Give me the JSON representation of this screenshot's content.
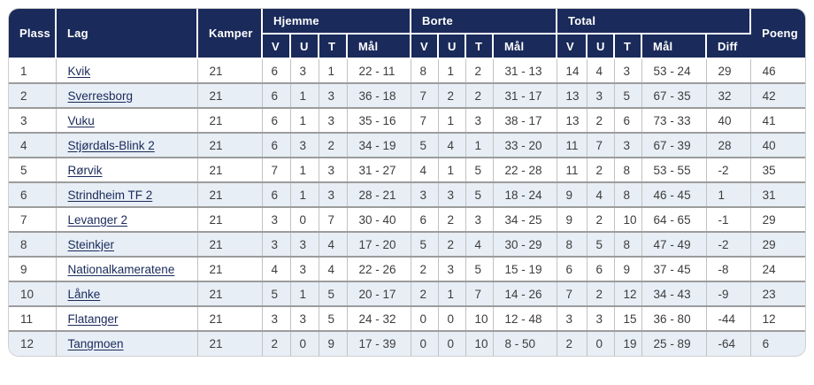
{
  "colors": {
    "header_bg": "#1a2a5a",
    "link": "#1a2a5a",
    "row_alt": "#e7eef6",
    "row_separator": "#9c9c9c"
  },
  "table": {
    "headers": {
      "plass": "Plass",
      "lag": "Lag",
      "kamper": "Kamper",
      "hjemme": "Hjemme",
      "borte": "Borte",
      "total": "Total",
      "v": "V",
      "u": "U",
      "t": "T",
      "maal": "Mål",
      "diff": "Diff",
      "poeng": "Poeng"
    },
    "rows": [
      {
        "plass": "1",
        "lag": "Kvik",
        "kamper": "21",
        "hv": "6",
        "hu": "3",
        "ht": "1",
        "hm": "22 - 11",
        "bv": "8",
        "bu": "1",
        "bt": "2",
        "bm": "31 - 13",
        "tv": "14",
        "tu": "4",
        "tt": "3",
        "tm": "53 - 24",
        "diff": "29",
        "poeng": "46"
      },
      {
        "plass": "2",
        "lag": "Sverresborg",
        "kamper": "21",
        "hv": "6",
        "hu": "1",
        "ht": "3",
        "hm": "36 - 18",
        "bv": "7",
        "bu": "2",
        "bt": "2",
        "bm": "31 - 17",
        "tv": "13",
        "tu": "3",
        "tt": "5",
        "tm": "67 - 35",
        "diff": "32",
        "poeng": "42"
      },
      {
        "plass": "3",
        "lag": "Vuku",
        "kamper": "21",
        "hv": "6",
        "hu": "1",
        "ht": "3",
        "hm": "35 - 16",
        "bv": "7",
        "bu": "1",
        "bt": "3",
        "bm": "38 - 17",
        "tv": "13",
        "tu": "2",
        "tt": "6",
        "tm": "73 - 33",
        "diff": "40",
        "poeng": "41"
      },
      {
        "plass": "4",
        "lag": "Stjørdals-Blink 2",
        "kamper": "21",
        "hv": "6",
        "hu": "3",
        "ht": "2",
        "hm": "34 - 19",
        "bv": "5",
        "bu": "4",
        "bt": "1",
        "bm": "33 - 20",
        "tv": "11",
        "tu": "7",
        "tt": "3",
        "tm": "67 - 39",
        "diff": "28",
        "poeng": "40"
      },
      {
        "plass": "5",
        "lag": "Rørvik",
        "kamper": "21",
        "hv": "7",
        "hu": "1",
        "ht": "3",
        "hm": "31 - 27",
        "bv": "4",
        "bu": "1",
        "bt": "5",
        "bm": "22 - 28",
        "tv": "11",
        "tu": "2",
        "tt": "8",
        "tm": "53 - 55",
        "diff": "-2",
        "poeng": "35"
      },
      {
        "plass": "6",
        "lag": "Strindheim TF 2",
        "kamper": "21",
        "hv": "6",
        "hu": "1",
        "ht": "3",
        "hm": "28 - 21",
        "bv": "3",
        "bu": "3",
        "bt": "5",
        "bm": "18 - 24",
        "tv": "9",
        "tu": "4",
        "tt": "8",
        "tm": "46 - 45",
        "diff": "1",
        "poeng": "31"
      },
      {
        "plass": "7",
        "lag": "Levanger 2",
        "kamper": "21",
        "hv": "3",
        "hu": "0",
        "ht": "7",
        "hm": "30 - 40",
        "bv": "6",
        "bu": "2",
        "bt": "3",
        "bm": "34 - 25",
        "tv": "9",
        "tu": "2",
        "tt": "10",
        "tm": "64 - 65",
        "diff": "-1",
        "poeng": "29"
      },
      {
        "plass": "8",
        "lag": "Steinkjer",
        "kamper": "21",
        "hv": "3",
        "hu": "3",
        "ht": "4",
        "hm": "17 - 20",
        "bv": "5",
        "bu": "2",
        "bt": "4",
        "bm": "30 - 29",
        "tv": "8",
        "tu": "5",
        "tt": "8",
        "tm": "47 - 49",
        "diff": "-2",
        "poeng": "29"
      },
      {
        "plass": "9",
        "lag": "Nationalkameratene",
        "kamper": "21",
        "hv": "4",
        "hu": "3",
        "ht": "4",
        "hm": "22 - 26",
        "bv": "2",
        "bu": "3",
        "bt": "5",
        "bm": "15 - 19",
        "tv": "6",
        "tu": "6",
        "tt": "9",
        "tm": "37 - 45",
        "diff": "-8",
        "poeng": "24"
      },
      {
        "plass": "10",
        "lag": "Lånke",
        "kamper": "21",
        "hv": "5",
        "hu": "1",
        "ht": "5",
        "hm": "20 - 17",
        "bv": "2",
        "bu": "1",
        "bt": "7",
        "bm": "14 - 26",
        "tv": "7",
        "tu": "2",
        "tt": "12",
        "tm": "34 - 43",
        "diff": "-9",
        "poeng": "23"
      },
      {
        "plass": "11",
        "lag": "Flatanger",
        "kamper": "21",
        "hv": "3",
        "hu": "3",
        "ht": "5",
        "hm": "24 - 32",
        "bv": "0",
        "bu": "0",
        "bt": "10",
        "bm": "12 - 48",
        "tv": "3",
        "tu": "3",
        "tt": "15",
        "tm": "36 - 80",
        "diff": "-44",
        "poeng": "12"
      },
      {
        "plass": "12",
        "lag": "Tangmoen",
        "kamper": "21",
        "hv": "2",
        "hu": "0",
        "ht": "9",
        "hm": "17 - 39",
        "bv": "0",
        "bu": "0",
        "bt": "10",
        "bm": "8 - 50",
        "tv": "2",
        "tu": "0",
        "tt": "19",
        "tm": "25 - 89",
        "diff": "-64",
        "poeng": "6"
      }
    ]
  }
}
